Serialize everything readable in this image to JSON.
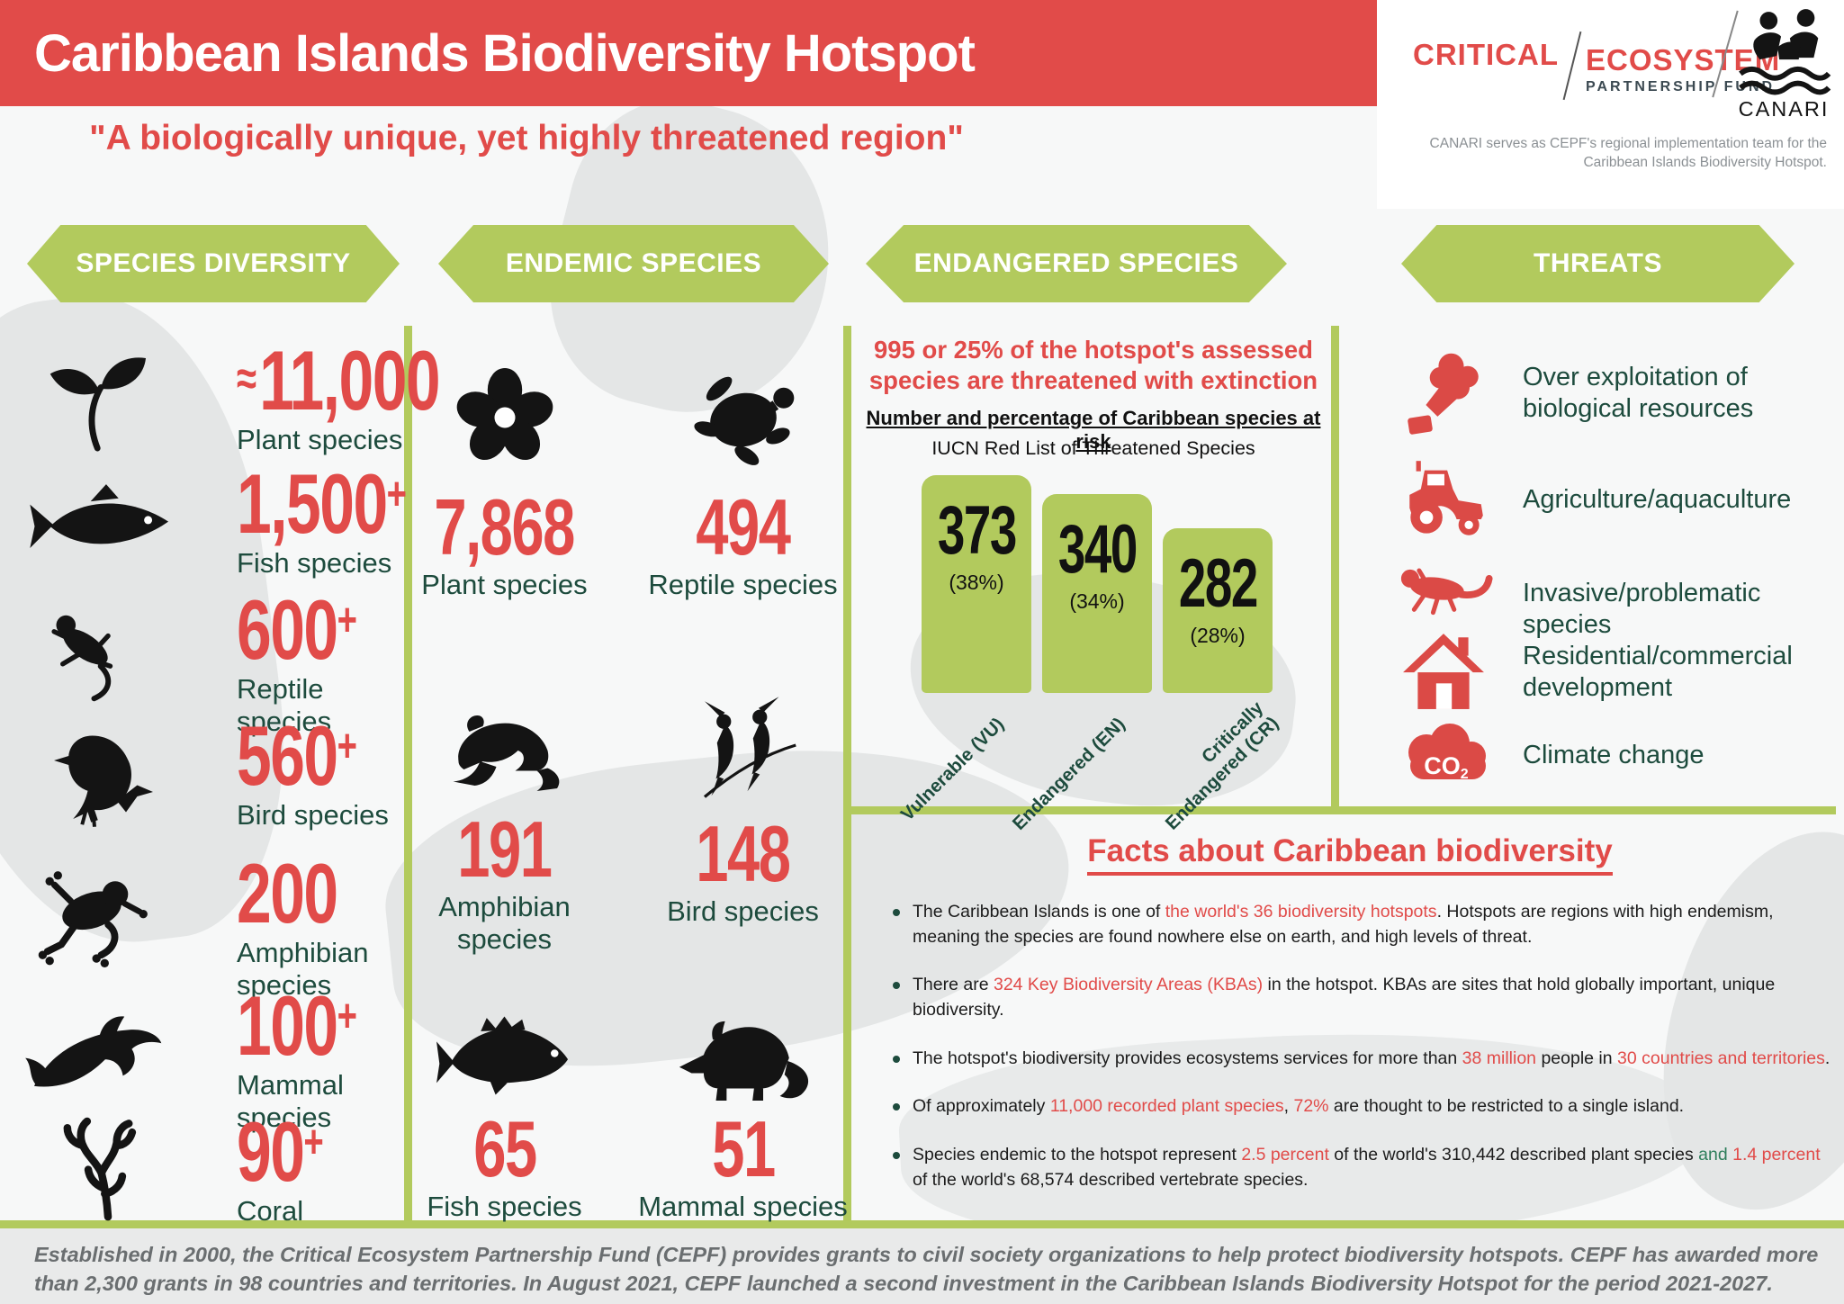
{
  "header": {
    "title": "Caribbean Islands Biodiversity Hotspot",
    "subtitle": "\"A biologically unique, yet highly threatened region\""
  },
  "logos": {
    "cepf": {
      "word1": "CRITICAL",
      "word2": "ECOSYSTEM",
      "word3": "PARTNERSHIP  FUND"
    },
    "canari": {
      "name": "CANARI",
      "caption": "CANARI serves as CEPF's regional implementation team for the Caribbean Islands Biodiversity Hotspot."
    }
  },
  "banners": {
    "diversity": "SPECIES DIVERSITY",
    "endemic": "ENDEMIC SPECIES",
    "endangered": "ENDANGERED SPECIES",
    "threats": "THREATS"
  },
  "species_diversity": {
    "items": [
      {
        "icon": "seedling-icon",
        "prefix": "≈",
        "value": "11,000",
        "suffix": "",
        "label": "Plant species"
      },
      {
        "icon": "fish-icon",
        "prefix": "",
        "value": "1,500",
        "suffix": "+",
        "label": "Fish species"
      },
      {
        "icon": "gecko-icon",
        "prefix": "",
        "value": "600",
        "suffix": "+",
        "label": "Reptile species"
      },
      {
        "icon": "bird-icon",
        "prefix": "",
        "value": "560",
        "suffix": "+",
        "label": "Bird species"
      },
      {
        "icon": "tree-frog-icon",
        "prefix": "",
        "value": "200",
        "suffix": "",
        "label": "Amphibian species"
      },
      {
        "icon": "dolphin-icon",
        "prefix": "",
        "value": "100",
        "suffix": "+",
        "label": "Mammal species"
      },
      {
        "icon": "coral-icon",
        "prefix": "",
        "value": "90",
        "suffix": "+",
        "label": "Coral species"
      }
    ]
  },
  "endemic_species": {
    "items": [
      {
        "icon": "flower-icon",
        "value": "7,868",
        "label": "Plant species"
      },
      {
        "icon": "sea-turtle-icon",
        "value": "494",
        "label": "Reptile species"
      },
      {
        "icon": "frog-icon",
        "value": "191",
        "label": "Amphibian species"
      },
      {
        "icon": "perched-birds-icon",
        "value": "148",
        "label": "Bird species"
      },
      {
        "icon": "grouper-fish-icon",
        "value": "65",
        "label": "Fish species"
      },
      {
        "icon": "mammal-icon",
        "value": "51",
        "label": "Mammal species"
      }
    ]
  },
  "endangered": {
    "headline": "995 or 25% of the hotspot's assessed species are threatened with extinction"
  },
  "chart_data": {
    "type": "bar",
    "title": "Number and percentage of Caribbean species at risk",
    "subtitle": "IUCN Red List of Threatened Species",
    "categories": [
      "Vulnerable (VU)",
      "Endangered (EN)",
      "Critically Endangered (CR)"
    ],
    "values": [
      373,
      340,
      282
    ],
    "percent_labels": [
      "(38%)",
      "(34%)",
      "(28%)"
    ],
    "ylim": [
      0,
      373
    ],
    "bar_color": "#b2ca5d",
    "legend": "none",
    "grid": false
  },
  "threats": {
    "items": [
      {
        "icon": "deforestation-icon",
        "label": "Over exploitation of biological resources"
      },
      {
        "icon": "tractor-icon",
        "label": "Agriculture/aquaculture"
      },
      {
        "icon": "invasive-lizard-icon",
        "label": "Invasive/problematic species"
      },
      {
        "icon": "house-icon",
        "label": "Residential/commercial development"
      },
      {
        "icon": "co2-cloud-icon",
        "label": "Climate change"
      }
    ]
  },
  "facts": {
    "title": "Facts about Caribbean biodiversity",
    "bullets": [
      [
        {
          "t": "The Caribbean Islands is one of ",
          "c": "dark"
        },
        {
          "t": "the world's 36 biodiversity hotspots",
          "c": "red"
        },
        {
          "t": ". Hotspots are regions with high endemism, meaning the species are found nowhere else on earth, and high levels of threat.",
          "c": "dark"
        }
      ],
      [
        {
          "t": "There are ",
          "c": "dark"
        },
        {
          "t": "324 Key Biodiversity Areas (KBAs)",
          "c": "red"
        },
        {
          "t": " in the hotspot. KBAs are sites that hold globally important, unique biodiversity.",
          "c": "dark"
        }
      ],
      [
        {
          "t": "The hotspot's biodiversity provides ecosystems services for more than ",
          "c": "dark"
        },
        {
          "t": "38 million",
          "c": "red"
        },
        {
          "t": " people in ",
          "c": "dark"
        },
        {
          "t": "30 countries and territories",
          "c": "red"
        },
        {
          "t": ".",
          "c": "dark"
        }
      ],
      [
        {
          "t": "Of approximately ",
          "c": "dark"
        },
        {
          "t": "11,000 recorded plant species",
          "c": "red"
        },
        {
          "t": ", ",
          "c": "dark"
        },
        {
          "t": "72%",
          "c": "red"
        },
        {
          "t": " are thought to be restricted to a single island.",
          "c": "dark"
        }
      ],
      [
        {
          "t": "Species endemic to the hotspot represent ",
          "c": "dark"
        },
        {
          "t": "2.5 percent",
          "c": "red"
        },
        {
          "t": " of the world's 310,442 described plant species ",
          "c": "dark"
        },
        {
          "t": "and",
          "c": "green"
        },
        {
          "t": " ",
          "c": "dark"
        },
        {
          "t": "1.4 percent",
          "c": "red"
        },
        {
          "t": " of the world's 68,574 described vertebrate species.",
          "c": "dark"
        }
      ]
    ]
  },
  "footer": {
    "text": "Established in 2000, the Critical Ecosystem Partnership Fund (CEPF) provides grants to civil society organizations to help protect biodiversity hotspots. CEPF has awarded more than 2,300 grants in 98 countries and territories. In August 2021, CEPF launched a second investment in the Caribbean Islands Biodiversity Hotspot for the period  2021-2027."
  },
  "colors": {
    "accent_red": "#e14b49",
    "accent_green": "#b2ca5d",
    "dark_green_text": "#1d4b3d",
    "fact_highlight_red": "#e14b49",
    "footer_gray": "#6a6e70"
  }
}
